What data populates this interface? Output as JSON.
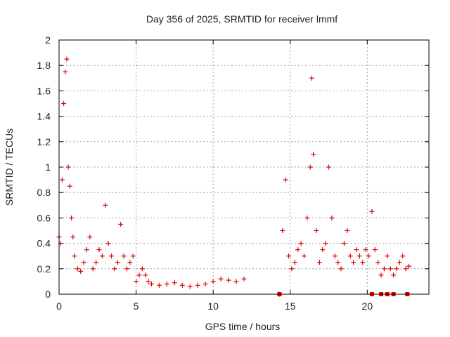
{
  "chart_data": {
    "type": "scatter",
    "title": "Day 356 of 2025, SRMTID for receiver lmmf",
    "xlabel": "GPS time / hours",
    "ylabel": "SRMTID / TECUs",
    "xlim": [
      0,
      24
    ],
    "ylim": [
      0,
      2
    ],
    "xticks": [
      0,
      5,
      10,
      15,
      20
    ],
    "yticks": [
      0,
      0.2,
      0.4,
      0.6,
      0.8,
      1,
      1.2,
      1.4,
      1.6,
      1.8,
      2
    ],
    "ytick_labels": [
      "0",
      "0.2",
      "0.4",
      "0.6",
      "0.8",
      "1",
      "1.2",
      "1.4",
      "1.6",
      "1.8",
      "2"
    ],
    "grid": true,
    "marker": "+",
    "series": [
      {
        "name": "SRMTID",
        "color": "#dd0000",
        "x": [
          0.0,
          0.1,
          0.2,
          0.3,
          0.4,
          0.5,
          0.6,
          0.7,
          0.8,
          0.9,
          1.0,
          1.2,
          1.4,
          1.6,
          1.8,
          2.0,
          2.2,
          2.4,
          2.6,
          2.8,
          3.0,
          3.2,
          3.4,
          3.6,
          3.8,
          4.0,
          4.2,
          4.4,
          4.6,
          4.8,
          5.0,
          5.2,
          5.4,
          5.6,
          5.8,
          6.0,
          6.5,
          7.0,
          7.5,
          8.0,
          8.5,
          9.0,
          9.5,
          10.0,
          10.5,
          11.0,
          11.5,
          12.0,
          14.3,
          14.5,
          14.7,
          14.9,
          15.1,
          15.3,
          15.5,
          15.7,
          15.9,
          16.1,
          16.3,
          16.4,
          16.5,
          16.7,
          16.9,
          17.1,
          17.3,
          17.5,
          17.7,
          17.9,
          18.1,
          18.3,
          18.5,
          18.7,
          18.9,
          19.1,
          19.3,
          19.5,
          19.7,
          19.9,
          20.1,
          20.3,
          20.5,
          20.7,
          20.9,
          21.1,
          21.3,
          21.5,
          21.7,
          21.9,
          22.1,
          22.3,
          22.5,
          22.7
        ],
        "y": [
          0.45,
          0.4,
          0.9,
          1.5,
          1.75,
          1.85,
          1.0,
          0.85,
          0.6,
          0.45,
          0.3,
          0.2,
          0.18,
          0.25,
          0.35,
          0.45,
          0.2,
          0.25,
          0.35,
          0.3,
          0.7,
          0.4,
          0.3,
          0.2,
          0.25,
          0.55,
          0.3,
          0.2,
          0.25,
          0.3,
          0.1,
          0.15,
          0.2,
          0.15,
          0.1,
          0.08,
          0.07,
          0.08,
          0.09,
          0.07,
          0.06,
          0.07,
          0.08,
          0.1,
          0.12,
          0.11,
          0.1,
          0.12,
          0.0,
          0.5,
          0.9,
          0.3,
          0.2,
          0.25,
          0.35,
          0.4,
          0.3,
          0.6,
          1.0,
          1.7,
          1.1,
          0.5,
          0.25,
          0.35,
          0.4,
          1.0,
          0.6,
          0.3,
          0.25,
          0.2,
          0.4,
          0.5,
          0.3,
          0.25,
          0.35,
          0.3,
          0.25,
          0.35,
          0.3,
          0.65,
          0.35,
          0.25,
          0.15,
          0.2,
          0.3,
          0.2,
          0.15,
          0.2,
          0.25,
          0.3,
          0.2,
          0.22
        ]
      }
    ],
    "zero_markers": {
      "marker": "square",
      "x": [
        14.3,
        20.3,
        20.9,
        21.3,
        21.7,
        22.6
      ],
      "y": [
        0,
        0,
        0,
        0,
        0,
        0
      ]
    }
  }
}
